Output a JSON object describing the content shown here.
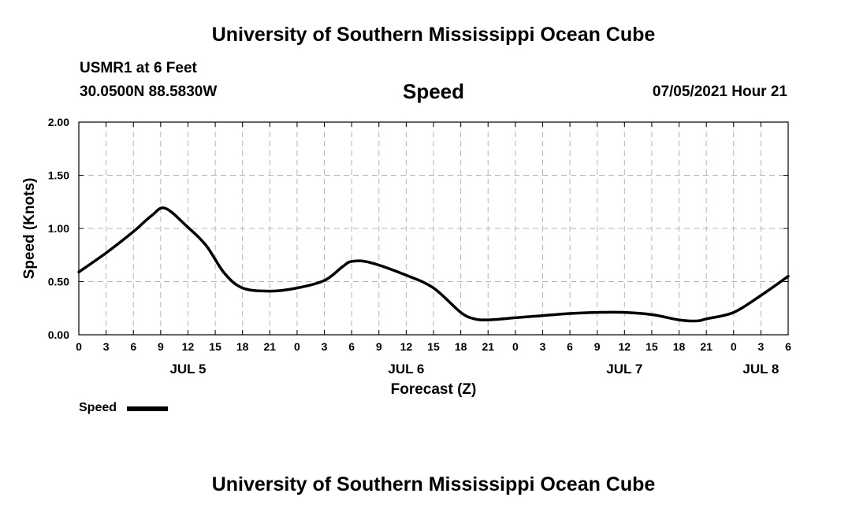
{
  "page": {
    "title": "University of Southern Mississippi Ocean Cube",
    "footer_title": "University of Southern Mississippi Ocean Cube",
    "station": "USMR1 at 6 Feet",
    "coords": "30.0500N  88.5830W",
    "timestamp": "07/05/2021 Hour 21"
  },
  "chart_data": {
    "type": "line",
    "title": "Speed",
    "xlabel": "Forecast (Z)",
    "ylabel": "Speed (Knots)",
    "ylim": [
      0,
      2
    ],
    "xlim": [
      0,
      78
    ],
    "yticks": [
      "0.00",
      "0.50",
      "1.00",
      "1.50",
      "2.00"
    ],
    "ytick_values": [
      0,
      0.5,
      1.0,
      1.5,
      2.0
    ],
    "xtick_labels": [
      "0",
      "3",
      "6",
      "9",
      "12",
      "15",
      "18",
      "21",
      "0",
      "3",
      "6",
      "9",
      "12",
      "15",
      "18",
      "21",
      "0",
      "3",
      "6",
      "9",
      "12",
      "15",
      "18",
      "21",
      "0",
      "3",
      "6"
    ],
    "day_labels": [
      {
        "label": "JUL 5",
        "hour": 12
      },
      {
        "label": "JUL 6",
        "hour": 36
      },
      {
        "label": "JUL 7",
        "hour": 60
      },
      {
        "label": "JUL 8",
        "hour": 75
      }
    ],
    "grid": true,
    "legend": "bottom-left",
    "series": [
      {
        "name": "Speed",
        "color": "#000000",
        "x": [
          0,
          3,
          6,
          8,
          9.5,
          12,
          14,
          16,
          18,
          21,
          24,
          27,
          29,
          30,
          32,
          36,
          39,
          42,
          43.5,
          45,
          48,
          51,
          54,
          57,
          60,
          63,
          66,
          68,
          69,
          72,
          75,
          78
        ],
        "y": [
          0.59,
          0.77,
          0.97,
          1.12,
          1.19,
          1.01,
          0.84,
          0.58,
          0.44,
          0.41,
          0.44,
          0.51,
          0.64,
          0.69,
          0.68,
          0.56,
          0.44,
          0.21,
          0.15,
          0.14,
          0.16,
          0.18,
          0.2,
          0.21,
          0.21,
          0.19,
          0.14,
          0.13,
          0.15,
          0.21,
          0.37,
          0.55
        ]
      }
    ]
  }
}
